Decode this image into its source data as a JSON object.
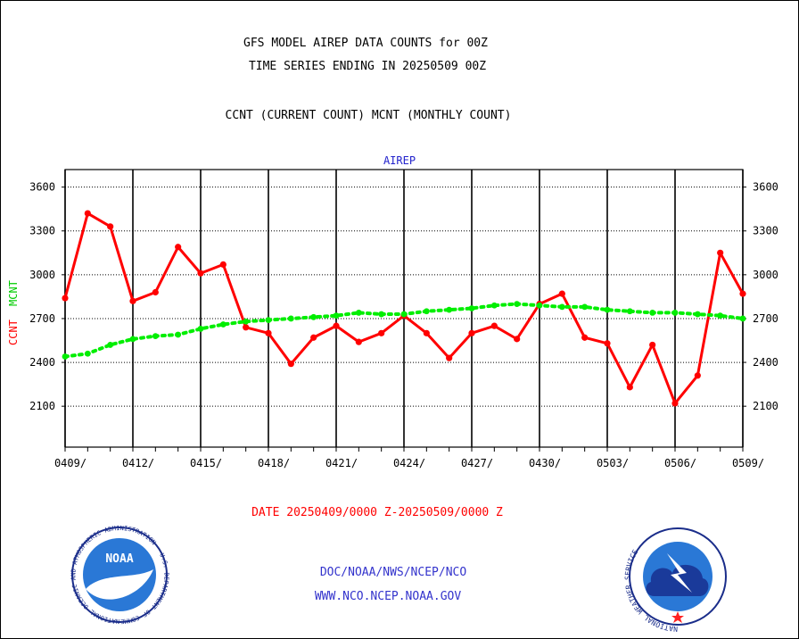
{
  "header": {
    "title": "GFS MODEL AIREP DATA COUNTS for 00Z",
    "subtitle": "TIME SERIES ENDING IN 20250509 00Z",
    "legend_desc": "CCNT (CURRENT COUNT) MCNT (MONTHLY COUNT)"
  },
  "chart_data": {
    "type": "line",
    "title": "AIREP",
    "ylabel_ccnt": "CCNT",
    "ylabel_mcnt": "MCNT",
    "xlabel": "DATE 20250409/0000 Z-20250509/0000 Z",
    "ylim": [
      1820,
      3720
    ],
    "yticks": [
      2100,
      2400,
      2700,
      3000,
      3300,
      3600
    ],
    "x_tick_labels": [
      "0409/",
      "0412/",
      "0415/",
      "0418/",
      "0421/",
      "0424/",
      "0427/",
      "0430/",
      "0503/",
      "0506/",
      "0509/"
    ],
    "x": [
      "0409",
      "0410",
      "0411",
      "0412",
      "0413",
      "0414",
      "0415",
      "0416",
      "0417",
      "0418",
      "0419",
      "0420",
      "0421",
      "0422",
      "0423",
      "0424",
      "0425",
      "0426",
      "0427",
      "0428",
      "0429",
      "0430",
      "0501",
      "0502",
      "0503",
      "0504",
      "0505",
      "0506",
      "0507",
      "0508",
      "0509"
    ],
    "grid": true,
    "series": [
      {
        "name": "CCNT",
        "color": "#ff0000",
        "values": [
          2840,
          3420,
          3330,
          2820,
          2880,
          3190,
          3010,
          3070,
          2640,
          2600,
          2390,
          2570,
          2650,
          2540,
          2600,
          2720,
          2600,
          2430,
          2600,
          2650,
          2560,
          2800,
          2870,
          2570,
          2530,
          2230,
          2520,
          2120,
          2310,
          3150,
          2870
        ]
      },
      {
        "name": "MCNT",
        "color": "#00ee00",
        "values": [
          2440,
          2460,
          2520,
          2560,
          2580,
          2590,
          2630,
          2660,
          2680,
          2690,
          2700,
          2710,
          2720,
          2740,
          2730,
          2730,
          2750,
          2760,
          2770,
          2790,
          2800,
          2790,
          2780,
          2780,
          2760,
          2750,
          2740,
          2740,
          2730,
          2720,
          2700
        ]
      }
    ]
  },
  "footer": {
    "org": "DOC/NOAA/NWS/NCEP/NCO",
    "url": "WWW.NCO.NCEP.NOAA.GOV",
    "noaa_logo_text": "NOAA",
    "noaa_ring_text": "NATIONAL OCEANIC AND ATMOSPHERIC ADMINISTRATION · U.S. DEPARTMENT OF COMMERCE",
    "nws_ring_text": "NATIONAL WEATHER SERVICE"
  },
  "colors": {
    "ccnt": "#ff0000",
    "mcnt": "#00ee00",
    "axis": "#000000",
    "footer_text": "#3333cc",
    "title_blue": "#2222cc"
  }
}
